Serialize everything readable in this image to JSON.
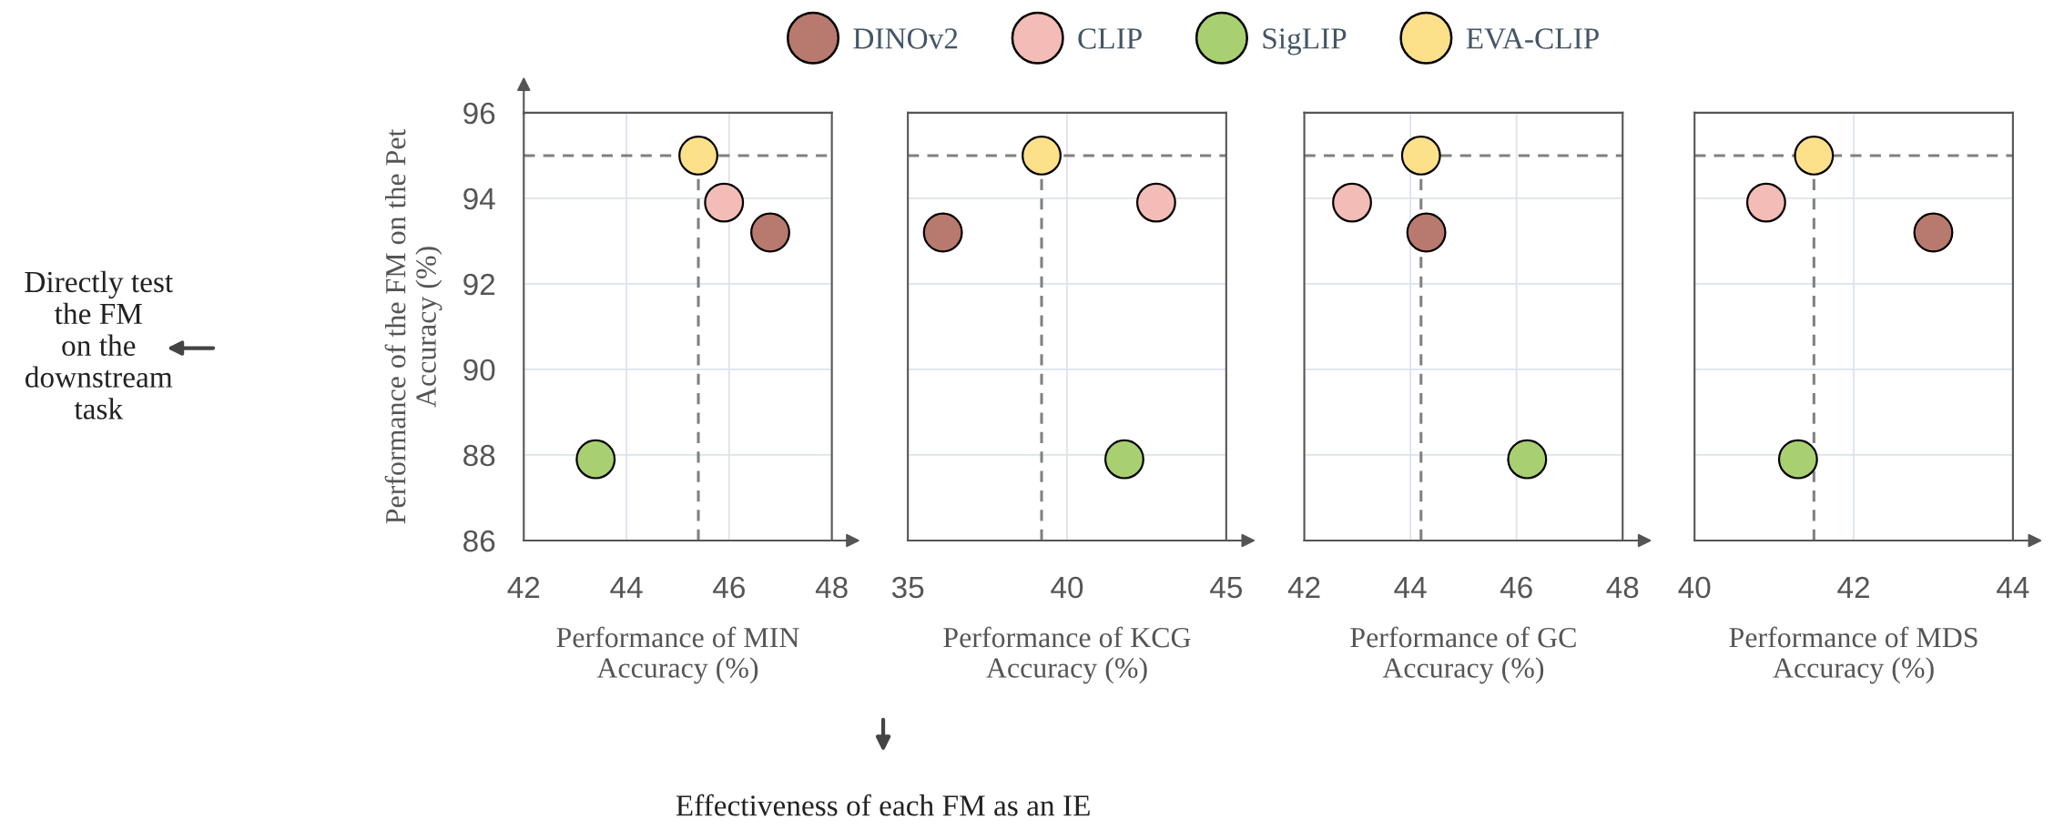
{
  "chart_data": [
    {
      "type": "scatter",
      "xlabel": "Performance of MIN\nAccuracy (%)",
      "ylabel": "Performance of the FM on the Pet\nAccuracy (%)",
      "xlim": [
        42,
        48
      ],
      "xticks": [
        42,
        44,
        46,
        48
      ],
      "ylim": [
        86,
        96
      ],
      "yticks": [
        86,
        88,
        90,
        92,
        94,
        96
      ],
      "grid": true,
      "legend": "top",
      "marker": "circle",
      "annotations": [
        "Directly test\nthe FM\non the\ndownstream\ntask",
        "Effectiveness of each FM as an IE"
      ],
      "ref_lines": [
        {
          "axis": "y",
          "value": 95,
          "color": "#808080",
          "line_style": "dashed"
        },
        {
          "axis": "x",
          "value": 45.4,
          "color": "#808080",
          "line_style": "dashed"
        }
      ],
      "series": [
        {
          "name": "DINOv2",
          "color": "#b87a6e",
          "x": [
            46.8
          ],
          "values": [
            93.2
          ]
        },
        {
          "name": "CLIP",
          "color": "#f3bcb6",
          "x": [
            45.9
          ],
          "values": [
            93.9
          ]
        },
        {
          "name": "SigLIP",
          "color": "#a8d070",
          "x": [
            43.4
          ],
          "values": [
            87.9
          ]
        },
        {
          "name": "EVA-CLIP",
          "color": "#fde08a",
          "x": [
            45.4
          ],
          "values": [
            95.0
          ]
        }
      ]
    },
    {
      "type": "scatter",
      "xlabel": "Performance of KCG\nAccuracy (%)",
      "xlim": [
        35,
        45
      ],
      "xticks": [
        35,
        40,
        45
      ],
      "ylim": [
        86,
        96
      ],
      "yticks": [
        86,
        88,
        90,
        92,
        94,
        96
      ],
      "grid": true,
      "marker": "circle",
      "tick_labels": "x",
      "ref_lines": [
        {
          "axis": "y",
          "value": 95,
          "color": "#808080",
          "line_style": "dashed"
        },
        {
          "axis": "x",
          "value": 39.2,
          "color": "#808080",
          "line_style": "dashed"
        }
      ],
      "series": [
        {
          "color": "#b87a6e",
          "x": [
            36.1
          ],
          "values": [
            93.2
          ]
        },
        {
          "color": "#f3bcb6",
          "x": [
            42.8
          ],
          "values": [
            93.9
          ]
        },
        {
          "color": "#a8d070",
          "x": [
            41.8
          ],
          "values": [
            87.9
          ]
        },
        {
          "color": "#fde08a",
          "x": [
            39.2
          ],
          "values": [
            95.0
          ]
        }
      ]
    },
    {
      "type": "scatter",
      "xlabel": "Performance of GC\nAccuracy (%)",
      "xlim": [
        42,
        48
      ],
      "xticks": [
        42,
        44,
        46,
        48
      ],
      "ylim": [
        86,
        96
      ],
      "yticks": [
        86,
        88,
        90,
        92,
        94,
        96
      ],
      "grid": true,
      "marker": "circle",
      "tick_labels": "x",
      "ref_lines": [
        {
          "axis": "y",
          "value": 95,
          "color": "#808080",
          "line_style": "dashed"
        },
        {
          "axis": "x",
          "value": 44.2,
          "color": "#808080",
          "line_style": "dashed"
        }
      ],
      "series": [
        {
          "color": "#b87a6e",
          "x": [
            44.3
          ],
          "values": [
            93.2
          ]
        },
        {
          "color": "#f3bcb6",
          "x": [
            42.9
          ],
          "values": [
            93.9
          ]
        },
        {
          "color": "#a8d070",
          "x": [
            46.2
          ],
          "values": [
            87.9
          ]
        },
        {
          "color": "#fde08a",
          "x": [
            44.2
          ],
          "values": [
            95.0
          ]
        }
      ]
    },
    {
      "type": "scatter",
      "xlabel": "Performance of MDS\nAccuracy (%)",
      "xlim": [
        40,
        44
      ],
      "xticks": [
        40,
        42,
        44
      ],
      "ylim": [
        86,
        96
      ],
      "yticks": [
        86,
        88,
        90,
        92,
        94,
        96
      ],
      "grid": true,
      "marker": "circle",
      "tick_labels": "x",
      "ref_lines": [
        {
          "axis": "y",
          "value": 95,
          "color": "#808080",
          "line_style": "dashed"
        },
        {
          "axis": "x",
          "value": 41.5,
          "color": "#808080",
          "line_style": "dashed"
        }
      ],
      "series": [
        {
          "color": "#b87a6e",
          "x": [
            43.0
          ],
          "values": [
            93.2
          ]
        },
        {
          "color": "#f3bcb6",
          "x": [
            40.9
          ],
          "values": [
            93.9
          ]
        },
        {
          "color": "#a8d070",
          "x": [
            41.3
          ],
          "values": [
            87.9
          ]
        },
        {
          "color": "#fde08a",
          "x": [
            41.5
          ],
          "values": [
            95.0
          ]
        }
      ]
    }
  ]
}
